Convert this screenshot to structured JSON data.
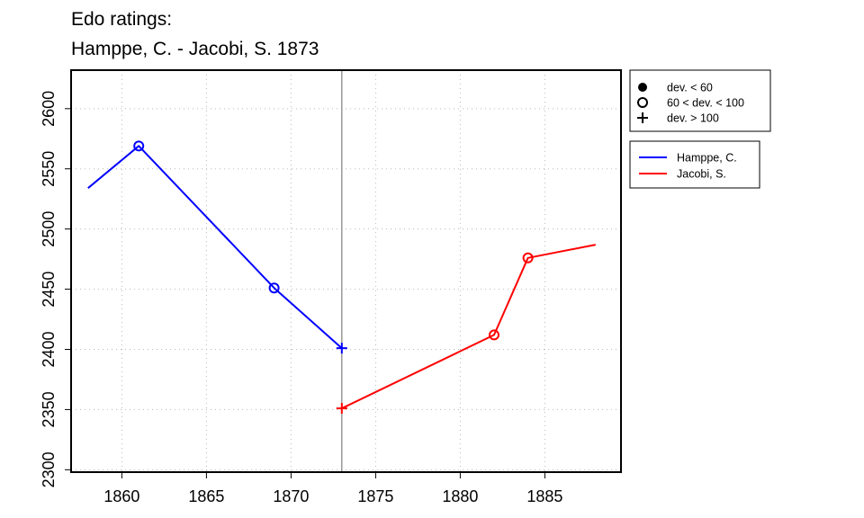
{
  "chart_data": {
    "type": "line",
    "title_lines": [
      "Edo ratings:",
      "Hamppe, C. - Jacobi, S. 1873"
    ],
    "xlabel": "",
    "ylabel": "",
    "xlim": [
      1857,
      1889.5
    ],
    "ylim": [
      2298,
      2632
    ],
    "x_ticks": [
      1860,
      1865,
      1870,
      1875,
      1880,
      1885
    ],
    "y_ticks": [
      2300,
      2350,
      2400,
      2450,
      2500,
      2550,
      2600
    ],
    "grid": true,
    "vline_x": 1873,
    "series": [
      {
        "name": "Hamppe, C.",
        "color": "#0000ff",
        "points": [
          {
            "x": 1858,
            "y": 2534,
            "marker": "none"
          },
          {
            "x": 1861,
            "y": 2569,
            "marker": "circle"
          },
          {
            "x": 1869,
            "y": 2451,
            "marker": "circle"
          },
          {
            "x": 1873,
            "y": 2401,
            "marker": "plus"
          }
        ]
      },
      {
        "name": "Jacobi, S.",
        "color": "#ff0000",
        "points": [
          {
            "x": 1873,
            "y": 2351,
            "marker": "plus"
          },
          {
            "x": 1882,
            "y": 2412,
            "marker": "circle"
          },
          {
            "x": 1884,
            "y": 2476,
            "marker": "circle"
          },
          {
            "x": 1888,
            "y": 2487,
            "marker": "none"
          }
        ]
      }
    ],
    "marker_legend": [
      {
        "symbol": "filled-circle",
        "label": "dev. < 60"
      },
      {
        "symbol": "circle",
        "label": "60 < dev. < 100"
      },
      {
        "symbol": "plus",
        "label": "dev. > 100"
      }
    ],
    "legend_placement": "right"
  }
}
